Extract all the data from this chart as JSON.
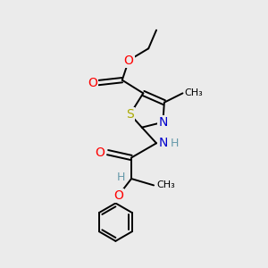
{
  "bg_color": "#ebebeb",
  "atom_colors": {
    "C": "#000000",
    "N": "#0000cc",
    "O": "#ff0000",
    "S": "#aaaa00",
    "H": "#6699aa"
  },
  "bond_lw": 1.4,
  "font_size": 9
}
